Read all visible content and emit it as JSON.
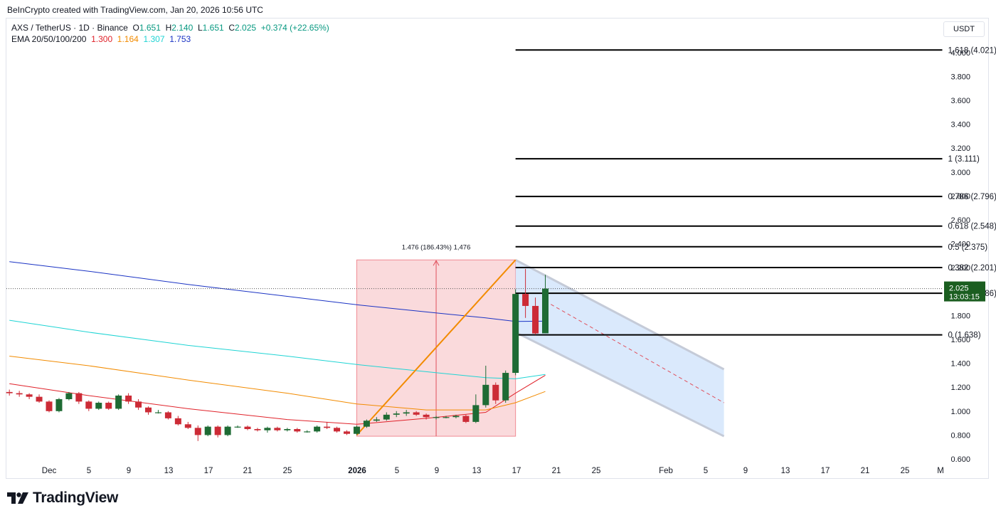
{
  "credit": "BeInCrypto created with TradingView.com, Jan 20, 2026 10:56 UTC",
  "legend": {
    "symbol": "AXS / TetherUS · 1D · Binance",
    "o_label": "O",
    "o": "1.651",
    "h_label": "H",
    "h": "2.140",
    "l_label": "L",
    "l": "1.651",
    "c_label": "C",
    "c": "2.025",
    "change": "+0.374 (+22.65%)",
    "ema_label": "EMA 20/50/100/200",
    "ema20": "1.300",
    "ema50": "1.164",
    "ema100": "1.307",
    "ema200": "1.753"
  },
  "currency": "USDT",
  "price_tag": {
    "price": "2.025",
    "countdown": "13:03:15"
  },
  "logo_text": "TradingView",
  "colors": {
    "up": "#1e6b34",
    "down": "#cc2b36",
    "ema20": "#e0222a",
    "ema50": "#f28b00",
    "ema100": "#1fd4d4",
    "ema200": "#1a33c4",
    "price_tag": "#1b5e20",
    "range_fill": "#f9d3d6",
    "channel_fill": "#d3e5fb"
  },
  "chart_data": {
    "type": "candlestick",
    "x_tick_labels": [
      "Dec",
      "5",
      "9",
      "13",
      "17",
      "21",
      "25",
      "2026",
      "5",
      "9",
      "13",
      "17",
      "21",
      "25",
      "Feb",
      "5",
      "9",
      "13",
      "17",
      "21",
      "25",
      "M"
    ],
    "y_ticks": [
      "0.600",
      "0.800",
      "1.000",
      "1.200",
      "1.400",
      "1.600",
      "1.800",
      "2.000",
      "2.200",
      "2.400",
      "2.600",
      "2.800",
      "3.000",
      "3.200",
      "3.400",
      "3.600",
      "3.800",
      "4.000"
    ],
    "ylim": [
      0.6,
      4.1
    ],
    "grid": false,
    "candles": [
      {
        "date": "2025-11-27",
        "o": 1.16,
        "h": 1.18,
        "l": 1.13,
        "c": 1.15
      },
      {
        "date": "2025-11-28",
        "o": 1.15,
        "h": 1.17,
        "l": 1.12,
        "c": 1.14
      },
      {
        "date": "2025-11-29",
        "o": 1.14,
        "h": 1.15,
        "l": 1.1,
        "c": 1.12
      },
      {
        "date": "2025-11-30",
        "o": 1.12,
        "h": 1.14,
        "l": 1.07,
        "c": 1.08
      },
      {
        "date": "2025-12-01",
        "o": 1.08,
        "h": 1.09,
        "l": 0.99,
        "c": 1.0
      },
      {
        "date": "2025-12-02",
        "o": 1.0,
        "h": 1.11,
        "l": 0.99,
        "c": 1.1
      },
      {
        "date": "2025-12-03",
        "o": 1.1,
        "h": 1.16,
        "l": 1.09,
        "c": 1.15
      },
      {
        "date": "2025-12-04",
        "o": 1.15,
        "h": 1.16,
        "l": 1.06,
        "c": 1.08
      },
      {
        "date": "2025-12-05",
        "o": 1.08,
        "h": 1.09,
        "l": 1.0,
        "c": 1.02
      },
      {
        "date": "2025-12-06",
        "o": 1.02,
        "h": 1.08,
        "l": 1.01,
        "c": 1.07
      },
      {
        "date": "2025-12-07",
        "o": 1.07,
        "h": 1.08,
        "l": 1.01,
        "c": 1.02
      },
      {
        "date": "2025-12-08",
        "o": 1.02,
        "h": 1.14,
        "l": 1.01,
        "c": 1.13
      },
      {
        "date": "2025-12-09",
        "o": 1.13,
        "h": 1.15,
        "l": 1.06,
        "c": 1.08
      },
      {
        "date": "2025-12-10",
        "o": 1.08,
        "h": 1.1,
        "l": 1.01,
        "c": 1.03
      },
      {
        "date": "2025-12-11",
        "o": 1.03,
        "h": 1.04,
        "l": 0.97,
        "c": 0.99
      },
      {
        "date": "2025-12-12",
        "o": 0.99,
        "h": 1.01,
        "l": 0.98,
        "c": 0.99
      },
      {
        "date": "2025-12-13",
        "o": 0.99,
        "h": 1.0,
        "l": 0.93,
        "c": 0.94
      },
      {
        "date": "2025-12-14",
        "o": 0.94,
        "h": 0.96,
        "l": 0.88,
        "c": 0.89
      },
      {
        "date": "2025-12-15",
        "o": 0.89,
        "h": 0.91,
        "l": 0.85,
        "c": 0.86
      },
      {
        "date": "2025-12-16",
        "o": 0.86,
        "h": 0.88,
        "l": 0.75,
        "c": 0.8
      },
      {
        "date": "2025-12-17",
        "o": 0.8,
        "h": 0.88,
        "l": 0.79,
        "c": 0.87
      },
      {
        "date": "2025-12-18",
        "o": 0.87,
        "h": 0.88,
        "l": 0.78,
        "c": 0.8
      },
      {
        "date": "2025-12-19",
        "o": 0.8,
        "h": 0.88,
        "l": 0.79,
        "c": 0.87
      },
      {
        "date": "2025-12-20",
        "o": 0.87,
        "h": 0.88,
        "l": 0.86,
        "c": 0.87
      },
      {
        "date": "2025-12-21",
        "o": 0.87,
        "h": 0.88,
        "l": 0.84,
        "c": 0.85
      },
      {
        "date": "2025-12-22",
        "o": 0.85,
        "h": 0.86,
        "l": 0.83,
        "c": 0.84
      },
      {
        "date": "2025-12-23",
        "o": 0.84,
        "h": 0.87,
        "l": 0.82,
        "c": 0.86
      },
      {
        "date": "2025-12-24",
        "o": 0.86,
        "h": 0.87,
        "l": 0.83,
        "c": 0.84
      },
      {
        "date": "2025-12-25",
        "o": 0.84,
        "h": 0.86,
        "l": 0.83,
        "c": 0.85
      },
      {
        "date": "2025-12-26",
        "o": 0.85,
        "h": 0.86,
        "l": 0.82,
        "c": 0.83
      },
      {
        "date": "2025-12-27",
        "o": 0.83,
        "h": 0.84,
        "l": 0.82,
        "c": 0.83
      },
      {
        "date": "2025-12-28",
        "o": 0.83,
        "h": 0.88,
        "l": 0.82,
        "c": 0.87
      },
      {
        "date": "2025-12-29",
        "o": 0.87,
        "h": 0.91,
        "l": 0.85,
        "c": 0.86
      },
      {
        "date": "2025-12-30",
        "o": 0.86,
        "h": 0.87,
        "l": 0.82,
        "c": 0.83
      },
      {
        "date": "2025-12-31",
        "o": 0.83,
        "h": 0.84,
        "l": 0.8,
        "c": 0.81
      },
      {
        "date": "2026-01-01",
        "o": 0.81,
        "h": 0.88,
        "l": 0.8,
        "c": 0.87
      },
      {
        "date": "2026-01-02",
        "o": 0.87,
        "h": 0.93,
        "l": 0.86,
        "c": 0.92
      },
      {
        "date": "2026-01-03",
        "o": 0.92,
        "h": 0.95,
        "l": 0.91,
        "c": 0.93
      },
      {
        "date": "2026-01-04",
        "o": 0.93,
        "h": 0.99,
        "l": 0.92,
        "c": 0.97
      },
      {
        "date": "2026-01-05",
        "o": 0.97,
        "h": 1.0,
        "l": 0.95,
        "c": 0.98
      },
      {
        "date": "2026-01-06",
        "o": 0.98,
        "h": 1.01,
        "l": 0.96,
        "c": 0.99
      },
      {
        "date": "2026-01-07",
        "o": 0.99,
        "h": 1.0,
        "l": 0.96,
        "c": 0.97
      },
      {
        "date": "2026-01-08",
        "o": 0.97,
        "h": 0.98,
        "l": 0.93,
        "c": 0.95
      },
      {
        "date": "2026-01-09",
        "o": 0.95,
        "h": 0.96,
        "l": 0.93,
        "c": 0.95
      },
      {
        "date": "2026-01-10",
        "o": 0.95,
        "h": 0.96,
        "l": 0.94,
        "c": 0.95
      },
      {
        "date": "2026-01-11",
        "o": 0.95,
        "h": 0.97,
        "l": 0.94,
        "c": 0.96
      },
      {
        "date": "2026-01-12",
        "o": 0.96,
        "h": 0.97,
        "l": 0.9,
        "c": 0.91
      },
      {
        "date": "2026-01-13",
        "o": 0.91,
        "h": 1.14,
        "l": 0.9,
        "c": 1.05
      },
      {
        "date": "2026-01-14",
        "o": 1.05,
        "h": 1.38,
        "l": 1.03,
        "c": 1.22
      },
      {
        "date": "2026-01-15",
        "o": 1.22,
        "h": 1.24,
        "l": 1.06,
        "c": 1.09
      },
      {
        "date": "2026-01-16",
        "o": 1.09,
        "h": 1.34,
        "l": 1.07,
        "c": 1.32
      },
      {
        "date": "2026-01-17",
        "o": 1.32,
        "h": 2.02,
        "l": 1.3,
        "c": 1.98
      },
      {
        "date": "2026-01-18",
        "o": 1.98,
        "h": 2.19,
        "l": 1.78,
        "c": 1.88
      },
      {
        "date": "2026-01-19",
        "o": 1.88,
        "h": 1.95,
        "l": 1.64,
        "c": 1.65
      },
      {
        "date": "2026-01-20",
        "o": 1.651,
        "h": 2.14,
        "l": 1.651,
        "c": 2.025
      }
    ],
    "ema_series": [
      {
        "name": "EMA 20",
        "last": 1.3,
        "points": [
          [
            "2025-11-27",
            1.23
          ],
          [
            "2025-12-05",
            1.13
          ],
          [
            "2025-12-15",
            1.02
          ],
          [
            "2025-12-25",
            0.93
          ],
          [
            "2026-01-01",
            0.89
          ],
          [
            "2026-01-08",
            0.94
          ],
          [
            "2026-01-14",
            0.99
          ],
          [
            "2026-01-17",
            1.15
          ],
          [
            "2026-01-20",
            1.3
          ]
        ]
      },
      {
        "name": "EMA 50",
        "last": 1.164,
        "points": [
          [
            "2025-11-27",
            1.46
          ],
          [
            "2025-12-05",
            1.38
          ],
          [
            "2025-12-15",
            1.26
          ],
          [
            "2025-12-25",
            1.15
          ],
          [
            "2026-01-01",
            1.06
          ],
          [
            "2026-01-08",
            1.01
          ],
          [
            "2026-01-14",
            1.01
          ],
          [
            "2026-01-17",
            1.07
          ],
          [
            "2026-01-20",
            1.164
          ]
        ]
      },
      {
        "name": "EMA 100",
        "last": 1.307,
        "points": [
          [
            "2025-11-27",
            1.76
          ],
          [
            "2025-12-05",
            1.66
          ],
          [
            "2025-12-15",
            1.55
          ],
          [
            "2025-12-25",
            1.46
          ],
          [
            "2026-01-01",
            1.39
          ],
          [
            "2026-01-08",
            1.33
          ],
          [
            "2026-01-14",
            1.28
          ],
          [
            "2026-01-17",
            1.27
          ],
          [
            "2026-01-20",
            1.307
          ]
        ]
      },
      {
        "name": "EMA 200",
        "last": 1.753,
        "points": [
          [
            "2025-11-27",
            2.25
          ],
          [
            "2025-12-05",
            2.17
          ],
          [
            "2025-12-15",
            2.06
          ],
          [
            "2025-12-25",
            1.96
          ],
          [
            "2026-01-01",
            1.89
          ],
          [
            "2026-01-08",
            1.83
          ],
          [
            "2026-01-14",
            1.78
          ],
          [
            "2026-01-17",
            1.75
          ],
          [
            "2026-01-20",
            1.753
          ]
        ]
      }
    ],
    "fib_levels": [
      {
        "level": "1.618",
        "price": 4.021,
        "label": "1.618 (4.021)"
      },
      {
        "level": "1",
        "price": 3.111,
        "label": "1 (3.111)"
      },
      {
        "level": "0.786",
        "price": 2.796,
        "label": "0.786 (2.796)"
      },
      {
        "level": "0.618",
        "price": 2.548,
        "label": "0.618 (2.548)"
      },
      {
        "level": "0.5",
        "price": 2.375,
        "label": "0.5 (2.375)"
      },
      {
        "level": "0.382",
        "price": 2.201,
        "label": "0.382 (2.201)"
      },
      {
        "level": "0.236",
        "price": 1.986,
        "label": "0.236 (1.986)"
      },
      {
        "level": "0",
        "price": 1.638,
        "label": "0 (1.638)"
      }
    ],
    "fib_start": "2026-01-17",
    "fib_end": "2026-03-01",
    "range_box": {
      "x_from": "2026-01-01",
      "x_to": "2026-01-17",
      "y_from": 0.79,
      "y_to": 2.265,
      "label": "1.476 (186.43%) 1,476"
    },
    "trend_line": {
      "from": [
        "2026-01-01",
        0.8
      ],
      "to": [
        "2026-01-17",
        2.265
      ]
    },
    "channel": {
      "upper": [
        [
          "2026-01-17",
          2.265
        ],
        [
          "2026-02-07",
          1.35
        ]
      ],
      "lower": [
        [
          "2026-01-17",
          1.66
        ],
        [
          "2026-02-07",
          0.79
        ]
      ],
      "mid": [
        [
          "2026-01-20",
          1.92
        ],
        [
          "2026-02-07",
          1.07
        ]
      ]
    },
    "last_price": 2.025
  }
}
